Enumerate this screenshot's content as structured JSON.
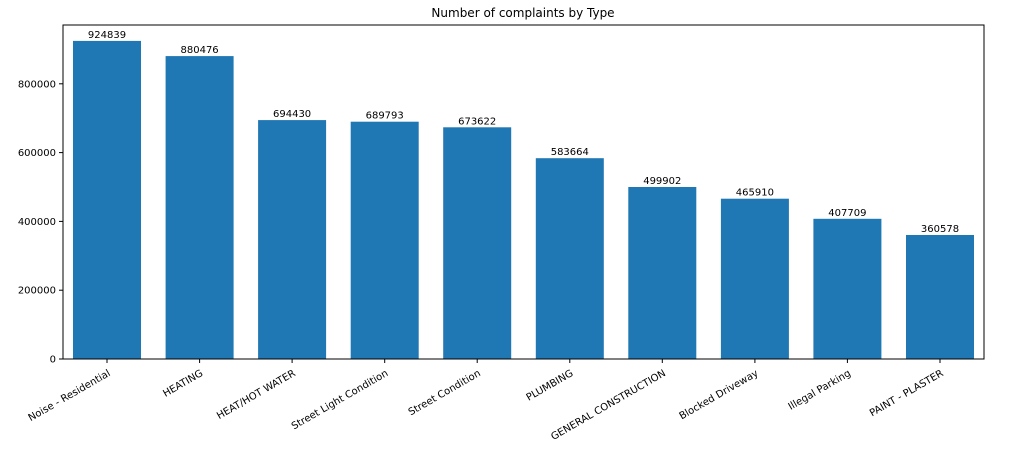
{
  "chart_data": {
    "type": "bar",
    "title": "Number of complaints by Type",
    "xlabel": "",
    "ylabel": "",
    "ylim": [
      0,
      971000
    ],
    "yticks": [
      0,
      200000,
      400000,
      600000,
      800000
    ],
    "grid": false,
    "bar_color": "#1f77b4",
    "categories": [
      "Noise - Residential",
      "HEATING",
      "HEAT/HOT WATER",
      "Street Light Condition",
      "Street Condition",
      "PLUMBING",
      "GENERAL CONSTRUCTION",
      "Blocked Driveway",
      "Illegal Parking",
      "PAINT - PLASTER"
    ],
    "values": [
      924839,
      880476,
      694430,
      689793,
      673622,
      583664,
      499902,
      465910,
      407709,
      360578
    ],
    "value_labels": [
      "924839",
      "880476",
      "694430",
      "689793",
      "673622",
      "583664",
      "499902",
      "465910",
      "407709",
      "360578"
    ],
    "ytick_labels": [
      "0",
      "200000",
      "400000",
      "600000",
      "800000"
    ]
  }
}
